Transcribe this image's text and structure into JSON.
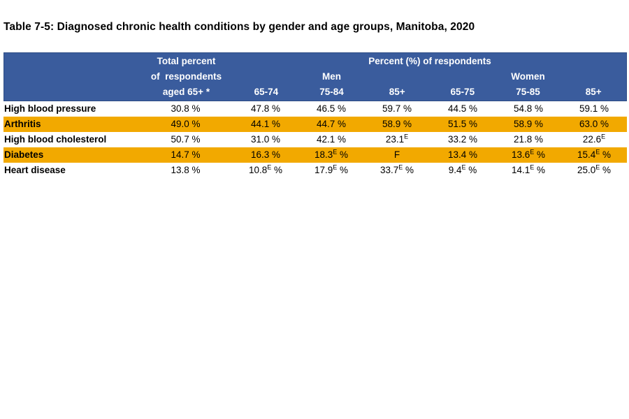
{
  "page": {
    "title": "Table 7-5: Diagnosed chronic health conditions by gender and age groups, Manitoba, 2020"
  },
  "colors": {
    "header_blue": "#3A5C9D",
    "highlight_orange": "#F2A900",
    "header_text": "#FFFFFF",
    "body_text": "#000000"
  },
  "chart_data": {
    "type": "table",
    "title": "Table 7-5: Diagnosed chronic health conditions by gender and age groups, Manitoba, 2020",
    "header": {
      "total_col_lines": [
        "Total percent",
        "of  respondents",
        "aged 65+ *"
      ],
      "group_label": "Percent (%) of respondents",
      "subgroups": [
        {
          "label": "Men",
          "columns": [
            "65-74",
            "75-84",
            "85+"
          ]
        },
        {
          "label": "Women",
          "columns": [
            "65-75",
            "75-85",
            "85+"
          ]
        }
      ]
    },
    "rows": [
      {
        "condition": "High blood pressure",
        "highlighted": false,
        "values": [
          "30.8 %",
          "47.8 %",
          "46.5 %",
          "59.7 %",
          "44.5 %",
          "54.8 %",
          "59.1 %"
        ]
      },
      {
        "condition": "Arthritis",
        "highlighted": true,
        "values": [
          "49.0 %",
          "44.1 %",
          "44.7 %",
          "58.9 %",
          "51.5 %",
          "58.9 %",
          "63.0 %"
        ]
      },
      {
        "condition": "High blood cholesterol",
        "highlighted": false,
        "values": [
          "50.7 %",
          "31.0 %",
          "42.1 %",
          "23.1^E",
          "33.2 %",
          "21.8 %",
          "22.6^E"
        ]
      },
      {
        "condition": "Diabetes",
        "highlighted": true,
        "values": [
          "14.7 %",
          "16.3 %",
          "18.3^E %",
          "F",
          "13.4 %",
          "13.6^E %",
          "15.4^E %"
        ]
      },
      {
        "condition": "Heart disease",
        "highlighted": false,
        "values": [
          "13.8 %",
          "10.8^E %",
          "17.9^E %",
          "33.7^E %",
          "9.4^E %",
          "14.1^E %",
          "25.0^E %"
        ]
      }
    ]
  }
}
